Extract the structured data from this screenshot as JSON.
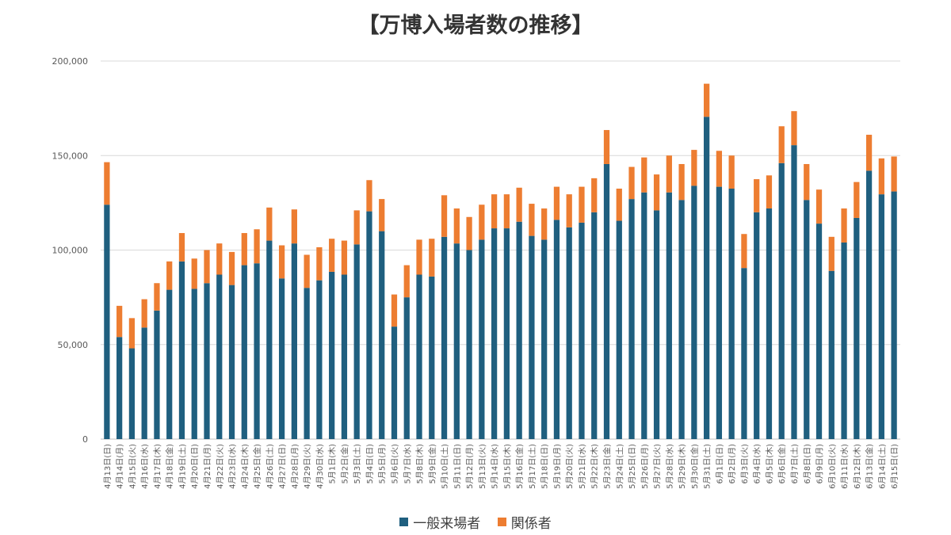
{
  "chart_data": {
    "type": "bar",
    "stacked": true,
    "title": "【万博入場者数の推移】",
    "xlabel": "",
    "ylabel": "",
    "ylim": [
      0,
      200000
    ],
    "yticks": [
      "0",
      "50,000",
      "100,000",
      "150,000",
      "200,000"
    ],
    "ytick_values": [
      0,
      50000,
      100000,
      150000,
      200000
    ],
    "grid": true,
    "legend_position": "bottom",
    "categories": [
      "4月13日(日)",
      "4月14日(月)",
      "4月15日(火)",
      "4月16日(水)",
      "4月17日(木)",
      "4月18日(金)",
      "4月19日(土)",
      "4月20日(日)",
      "4月21日(月)",
      "4月22日(火)",
      "4月23日(水)",
      "4月24日(木)",
      "4月25日(金)",
      "4月26日(土)",
      "4月27日(日)",
      "4月28日(月)",
      "4月29日(火)",
      "4月30日(水)",
      "5月1日(木)",
      "5月2日(金)",
      "5月3日(土)",
      "5月4日(日)",
      "5月5日(月)",
      "5月6日(火)",
      "5月7日(水)",
      "5月8日(木)",
      "5月9日(金)",
      "5月10日(土)",
      "5月11日(日)",
      "5月12日(月)",
      "5月13日(火)",
      "5月14日(水)",
      "5月15日(木)",
      "5月16日(金)",
      "5月17日(土)",
      "5月18日(日)",
      "5月19日(月)",
      "5月20日(火)",
      "5月21日(水)",
      "5月22日(木)",
      "5月23日(金)",
      "5月24日(土)",
      "5月25日(日)",
      "5月26日(月)",
      "5月27日(火)",
      "5月28日(水)",
      "5月29日(木)",
      "5月30日(金)",
      "5月31日(土)",
      "6月1日(日)",
      "6月2日(月)",
      "6月3日(火)",
      "6月4日(水)",
      "6月5日(木)",
      "6月6日(金)",
      "6月7日(土)",
      "6月8日(日)",
      "6月9日(月)",
      "6月10日(火)",
      "6月11日(水)",
      "6月12日(木)",
      "6月13日(金)",
      "6月14日(土)",
      "6月15日(日)"
    ],
    "series": [
      {
        "name": "一般来場者",
        "color": "#1f5f7f",
        "values": [
          124000,
          54000,
          48000,
          59000,
          68000,
          79000,
          94000,
          79500,
          82500,
          87000,
          81500,
          92000,
          93000,
          105000,
          85000,
          103500,
          80000,
          84000,
          88500,
          87000,
          103000,
          120500,
          110000,
          59500,
          75000,
          87000,
          86000,
          107000,
          103500,
          100000,
          105500,
          111500,
          111500,
          115000,
          107500,
          105500,
          116000,
          112000,
          114500,
          120000,
          145500,
          115500,
          127000,
          130500,
          121000,
          130500,
          126500,
          134000,
          170500,
          133500,
          132500,
          90500,
          120000,
          122000,
          146000,
          155500,
          126500,
          114000,
          89000,
          104000,
          117000,
          142000,
          129500,
          131000
        ]
      },
      {
        "name": "関係者",
        "color": "#ed7d31",
        "values": [
          22500,
          16500,
          16000,
          15000,
          14500,
          15000,
          15000,
          16000,
          17500,
          16500,
          17500,
          17000,
          18000,
          17500,
          17500,
          18000,
          17500,
          17500,
          17500,
          18000,
          18000,
          16500,
          17000,
          17000,
          17000,
          18500,
          20000,
          22000,
          18500,
          17500,
          18500,
          18000,
          18000,
          18000,
          17000,
          16500,
          17500,
          17500,
          19000,
          18000,
          18000,
          17000,
          17000,
          18500,
          19000,
          19500,
          19000,
          19000,
          17500,
          19000,
          17500,
          18000,
          17500,
          17500,
          19500,
          18000,
          19000,
          18000,
          18000,
          18000,
          19000,
          19000,
          19000,
          18500
        ]
      }
    ]
  }
}
